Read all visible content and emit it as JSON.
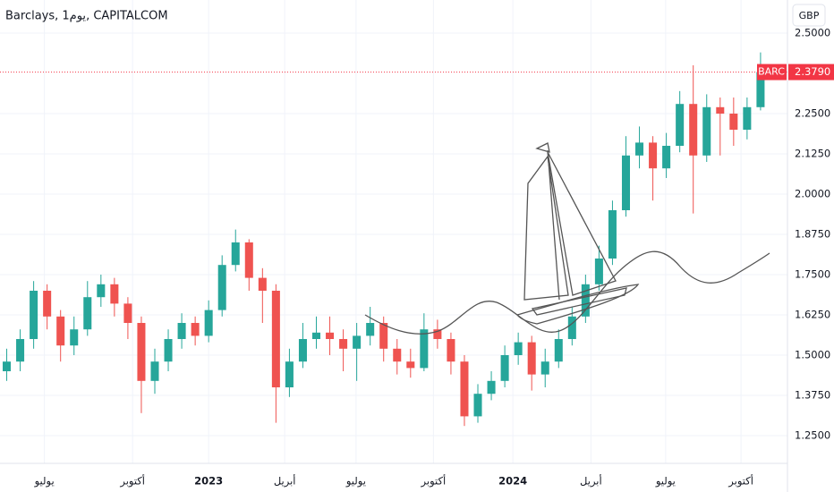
{
  "chart_data": {
    "type": "candlestick",
    "title": "Barclays, 1يوم, CAPITALCOM",
    "currency": "GBP",
    "x": [
      1,
      3,
      5,
      7,
      9,
      11,
      13,
      15,
      17,
      19,
      21,
      23,
      25,
      27,
      29,
      31,
      33,
      35,
      37,
      39,
      41,
      43,
      45,
      47,
      49,
      51,
      53,
      55,
      57,
      59,
      61,
      63,
      65,
      67,
      69,
      71,
      73,
      75,
      77,
      79,
      81,
      83,
      85,
      87,
      89,
      91,
      93,
      95,
      97,
      99,
      101,
      103,
      105,
      107,
      109,
      111,
      113
    ],
    "open": [
      1.45,
      1.48,
      1.55,
      1.7,
      1.62,
      1.53,
      1.58,
      1.68,
      1.72,
      1.66,
      1.6,
      1.42,
      1.48,
      1.55,
      1.6,
      1.56,
      1.64,
      1.78,
      1.85,
      1.74,
      1.7,
      1.4,
      1.48,
      1.55,
      1.57,
      1.55,
      1.52,
      1.56,
      1.6,
      1.52,
      1.48,
      1.46,
      1.58,
      1.55,
      1.48,
      1.31,
      1.38,
      1.42,
      1.5,
      1.54,
      1.44,
      1.48,
      1.55,
      1.62,
      1.72,
      1.8,
      1.95,
      2.12,
      2.16,
      2.08,
      2.15,
      2.28,
      2.12,
      2.27,
      2.25,
      2.2,
      2.27
    ],
    "high": [
      1.52,
      1.58,
      1.73,
      1.72,
      1.64,
      1.62,
      1.73,
      1.75,
      1.74,
      1.68,
      1.62,
      1.52,
      1.58,
      1.63,
      1.62,
      1.67,
      1.81,
      1.89,
      1.86,
      1.77,
      1.72,
      1.52,
      1.6,
      1.62,
      1.62,
      1.58,
      1.6,
      1.65,
      1.62,
      1.55,
      1.52,
      1.63,
      1.61,
      1.57,
      1.5,
      1.41,
      1.45,
      1.53,
      1.57,
      1.56,
      1.52,
      1.58,
      1.65,
      1.75,
      1.84,
      1.98,
      2.18,
      2.21,
      2.18,
      2.19,
      2.32,
      2.4,
      2.31,
      2.3,
      2.3,
      2.3,
      2.44
    ],
    "low": [
      1.42,
      1.45,
      1.52,
      1.58,
      1.48,
      1.5,
      1.56,
      1.65,
      1.62,
      1.55,
      1.32,
      1.38,
      1.45,
      1.52,
      1.53,
      1.54,
      1.62,
      1.76,
      1.7,
      1.6,
      1.29,
      1.37,
      1.46,
      1.52,
      1.5,
      1.45,
      1.42,
      1.53,
      1.48,
      1.44,
      1.43,
      1.45,
      1.52,
      1.44,
      1.28,
      1.29,
      1.36,
      1.4,
      1.47,
      1.39,
      1.4,
      1.46,
      1.53,
      1.6,
      1.7,
      1.78,
      1.93,
      2.08,
      1.98,
      2.05,
      2.13,
      1.94,
      2.1,
      2.12,
      2.15,
      2.17,
      2.26
    ],
    "close": [
      1.48,
      1.55,
      1.7,
      1.62,
      1.53,
      1.58,
      1.68,
      1.72,
      1.66,
      1.6,
      1.42,
      1.48,
      1.55,
      1.6,
      1.56,
      1.64,
      1.78,
      1.85,
      1.74,
      1.7,
      1.4,
      1.48,
      1.55,
      1.57,
      1.55,
      1.52,
      1.56,
      1.6,
      1.52,
      1.48,
      1.46,
      1.58,
      1.55,
      1.48,
      1.31,
      1.38,
      1.42,
      1.5,
      1.54,
      1.44,
      1.48,
      1.55,
      1.62,
      1.72,
      1.8,
      1.95,
      2.12,
      2.16,
      2.08,
      2.15,
      2.28,
      2.12,
      2.27,
      2.25,
      2.2,
      2.27,
      2.379
    ],
    "up_color": "#26a69a",
    "down_color": "#ef5350",
    "last": {
      "symbol": "BARC",
      "value": 2.379,
      "label": "2.3790",
      "color": "#f23645"
    },
    "xlim": [
      0,
      117
    ],
    "xticks": [
      {
        "value": 6.6,
        "label": "يوليو"
      },
      {
        "value": 19.7,
        "label": "أكتوبر"
      },
      {
        "value": 31,
        "label": "2023"
      },
      {
        "value": 42.3,
        "label": "أبريل"
      },
      {
        "value": 52.9,
        "label": "يوليو"
      },
      {
        "value": 64.4,
        "label": "أكتوبر"
      },
      {
        "value": 76.2,
        "label": "2024"
      },
      {
        "value": 87.8,
        "label": "أبريل"
      },
      {
        "value": 98.9,
        "label": "يوليو"
      },
      {
        "value": 110.1,
        "label": "أكتوبر"
      }
    ],
    "ylim": [
      1.1639,
      2.6028
    ],
    "yticks": [
      {
        "value": 1.25,
        "label": "1.2500"
      },
      {
        "value": 1.375,
        "label": "1.3750"
      },
      {
        "value": 1.5,
        "label": "1.5000"
      },
      {
        "value": 1.625,
        "label": "1.6250"
      },
      {
        "value": 1.75,
        "label": "1.7500"
      },
      {
        "value": 1.875,
        "label": "1.8750"
      },
      {
        "value": 2,
        "label": "2.0000"
      },
      {
        "value": 2.125,
        "label": "2.1250"
      },
      {
        "value": 2.25,
        "label": "2.2500"
      },
      {
        "value": 2.5,
        "label": "2.5000"
      }
    ],
    "grid": true
  }
}
